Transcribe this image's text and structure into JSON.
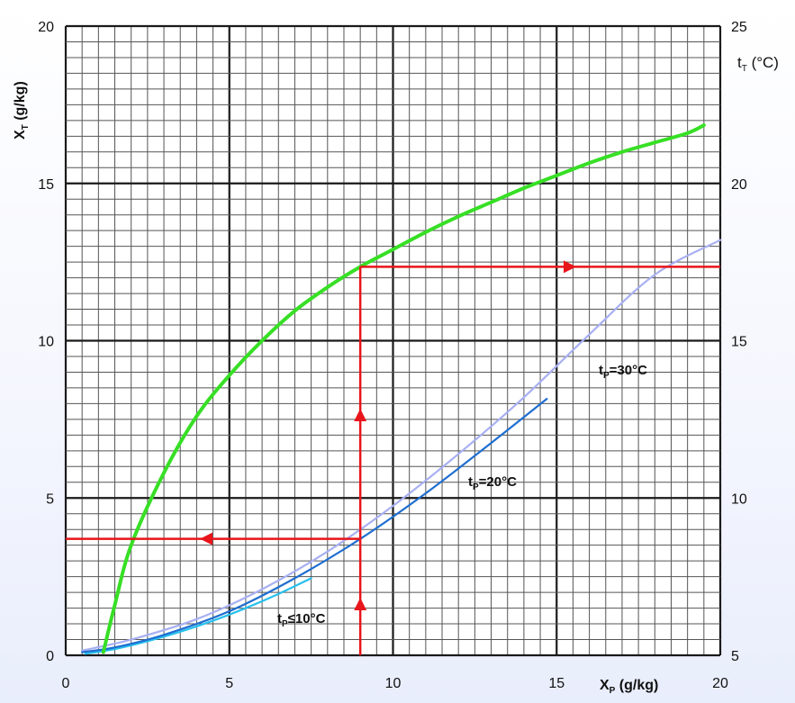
{
  "chart_data": {
    "type": "line",
    "x_label": "X",
    "x_label_sub": "P",
    "x_unit": " (g/kg)",
    "y_label": "X",
    "y_label_sub": "T",
    "y_unit": " (g/kg)",
    "y2_label": "t",
    "y2_label_sub": "T",
    "y2_unit": " (°C)",
    "xlim": [
      0,
      20
    ],
    "ylim": [
      0,
      20
    ],
    "y2lim": [
      5,
      25
    ],
    "x_ticks": [
      0,
      5,
      10,
      15,
      20
    ],
    "y_ticks": [
      0,
      5,
      10,
      15,
      20
    ],
    "y2_ticks": [
      5,
      10,
      15,
      20,
      25
    ],
    "grid": true,
    "series": [
      {
        "label_prefix": "t",
        "label_sub": "P",
        "label_suffix": "≤10°C",
        "color": "#27c0ee",
        "points": [
          [
            0.6,
            0.05
          ],
          [
            1.5,
            0.2
          ],
          [
            2.5,
            0.45
          ],
          [
            3.5,
            0.75
          ],
          [
            4.5,
            1.1
          ],
          [
            5.5,
            1.5
          ],
          [
            6.5,
            1.95
          ],
          [
            7.5,
            2.45
          ]
        ]
      },
      {
        "label_prefix": "t",
        "label_sub": "P",
        "label_suffix": "=20°C",
        "color": "#1f6ed0",
        "points": [
          [
            0.5,
            0.1
          ],
          [
            1.5,
            0.25
          ],
          [
            3,
            0.65
          ],
          [
            5,
            1.4
          ],
          [
            7,
            2.45
          ],
          [
            9,
            3.7
          ],
          [
            11,
            5.15
          ],
          [
            13,
            6.75
          ],
          [
            14.7,
            8.15
          ]
        ]
      },
      {
        "label_prefix": "t",
        "label_sub": "P",
        "label_suffix": "=30°C",
        "color": "#a8b0f2",
        "points": [
          [
            0.5,
            0.15
          ],
          [
            2,
            0.5
          ],
          [
            4,
            1.15
          ],
          [
            6,
            2.1
          ],
          [
            8,
            3.3
          ],
          [
            10,
            4.75
          ],
          [
            12,
            6.4
          ],
          [
            14,
            8.2
          ],
          [
            16,
            10.2
          ],
          [
            18,
            12.1
          ],
          [
            20,
            13.2
          ]
        ]
      },
      {
        "label": "",
        "color": "#37df25",
        "points": [
          [
            1.15,
            0.1
          ],
          [
            1.5,
            1.6
          ],
          [
            2.0,
            3.5
          ],
          [
            3,
            5.8
          ],
          [
            4,
            7.6
          ],
          [
            5,
            8.9
          ],
          [
            6,
            10.0
          ],
          [
            7,
            10.95
          ],
          [
            8,
            11.7
          ],
          [
            9,
            12.35
          ],
          [
            10,
            12.9
          ],
          [
            11,
            13.45
          ],
          [
            12,
            13.95
          ],
          [
            13,
            14.4
          ],
          [
            14,
            14.85
          ],
          [
            15,
            15.25
          ],
          [
            16,
            15.65
          ],
          [
            17,
            16.0
          ],
          [
            18,
            16.3
          ],
          [
            19,
            16.6
          ],
          [
            19.5,
            16.85
          ]
        ]
      }
    ],
    "guides": {
      "color": "#e8151a",
      "x_value": 9,
      "low_y": 3.7,
      "high_y": 12.35
    }
  }
}
